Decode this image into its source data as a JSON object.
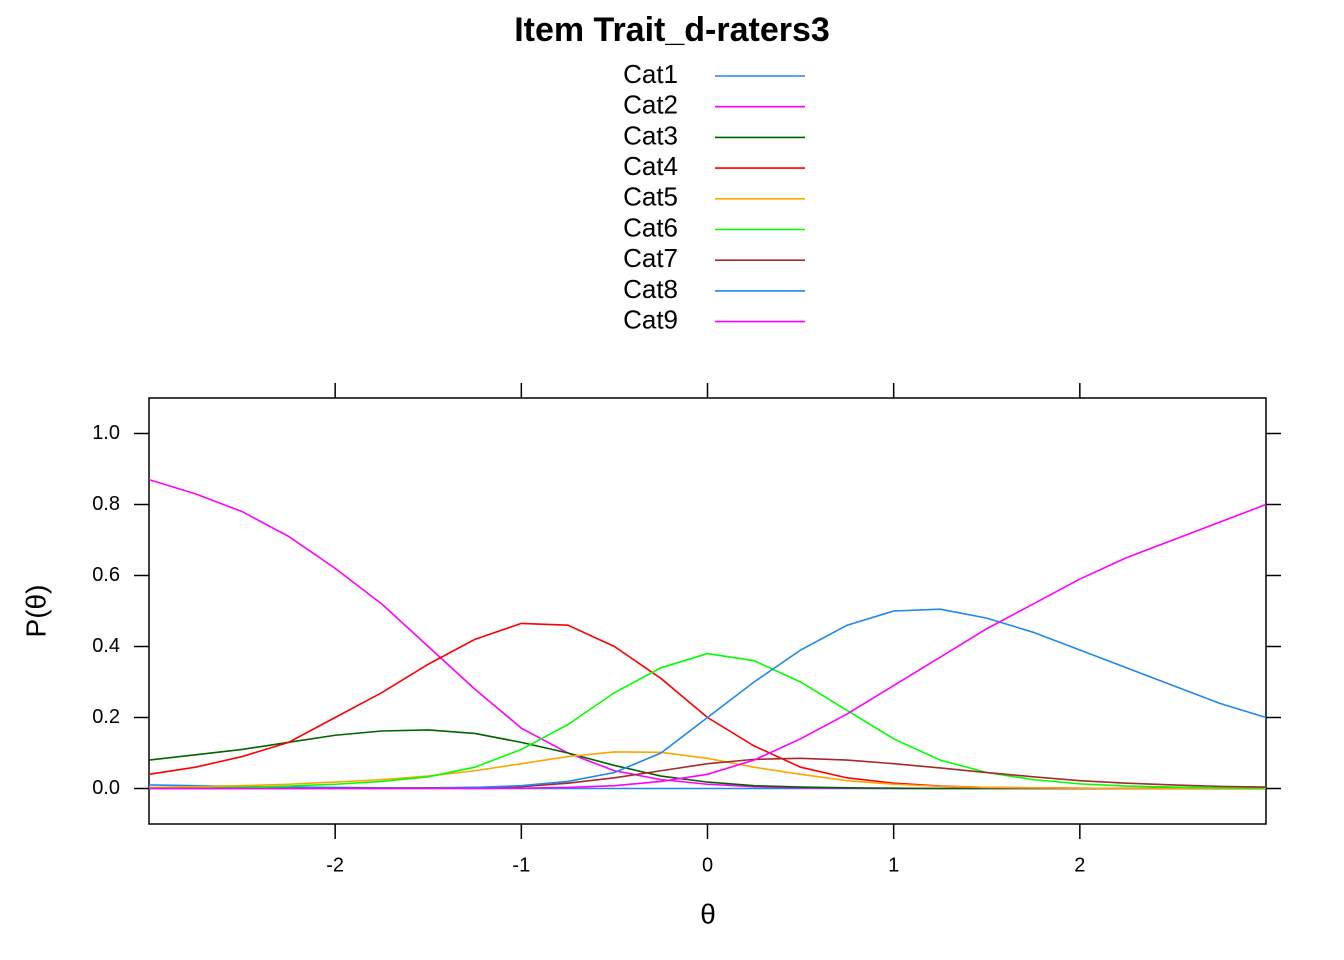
{
  "chart_data": {
    "type": "line",
    "title": "Item Trait_d-raters3",
    "x_label": "θ",
    "y_label": "P(θ)",
    "x": [
      -3,
      -2.75,
      -2.5,
      -2.25,
      -2,
      -1.75,
      -1.5,
      -1.25,
      -1,
      -0.75,
      -0.5,
      -0.25,
      0,
      0.25,
      0.5,
      0.75,
      1,
      1.25,
      1.5,
      1.75,
      2,
      2.25,
      2.5,
      2.75,
      3
    ],
    "xlim": [
      -3,
      3
    ],
    "xticks": [
      -2,
      -1,
      0,
      1,
      2
    ],
    "ylim": [
      -0.1,
      1.1
    ],
    "yticks": [
      {
        "value": 0,
        "label": "0.0"
      },
      {
        "value": 0.2,
        "label": "0.2"
      },
      {
        "value": 0.4,
        "label": "0.4"
      },
      {
        "value": 0.6,
        "label": "0.6"
      },
      {
        "value": 0.8,
        "label": "0.8"
      },
      {
        "value": 1,
        "label": "1.0"
      }
    ],
    "series": [
      {
        "name": "Cat1",
        "color": "#1e88f0",
        "values": [
          0.01,
          0.008,
          0.006,
          0.004,
          0.003,
          0.002,
          0.001,
          0,
          0,
          0,
          0,
          0,
          0,
          0,
          0,
          0,
          0,
          0,
          0,
          0,
          0,
          0,
          0,
          0,
          0
        ]
      },
      {
        "name": "Cat2",
        "color": "#ff00ff",
        "values": [
          0.87,
          0.83,
          0.78,
          0.71,
          0.62,
          0.52,
          0.4,
          0.28,
          0.17,
          0.1,
          0.05,
          0.025,
          0.012,
          0.005,
          0.002,
          0.001,
          0,
          0,
          0,
          0,
          0,
          0,
          0,
          0,
          0
        ]
      },
      {
        "name": "Cat3",
        "color": "#006400",
        "values": [
          0.08,
          0.095,
          0.11,
          0.13,
          0.15,
          0.162,
          0.165,
          0.155,
          0.13,
          0.1,
          0.065,
          0.035,
          0.018,
          0.008,
          0.004,
          0.002,
          0.001,
          0,
          0,
          0,
          0,
          0,
          0,
          0,
          0
        ]
      },
      {
        "name": "Cat4",
        "color": "#ff0000",
        "values": [
          0.04,
          0.06,
          0.09,
          0.13,
          0.2,
          0.27,
          0.35,
          0.42,
          0.465,
          0.46,
          0.4,
          0.31,
          0.2,
          0.12,
          0.06,
          0.03,
          0.015,
          0.007,
          0.003,
          0.002,
          0.001,
          0,
          0,
          0,
          0
        ]
      },
      {
        "name": "Cat5",
        "color": "#ffa500",
        "values": [
          0.003,
          0.005,
          0.008,
          0.012,
          0.018,
          0.025,
          0.035,
          0.05,
          0.07,
          0.09,
          0.103,
          0.102,
          0.085,
          0.06,
          0.04,
          0.022,
          0.012,
          0.006,
          0.003,
          0.002,
          0.001,
          0,
          0,
          0,
          0
        ]
      },
      {
        "name": "Cat6",
        "color": "#00ff00",
        "values": [
          0,
          0.001,
          0.003,
          0.007,
          0.012,
          0.02,
          0.033,
          0.06,
          0.11,
          0.18,
          0.27,
          0.34,
          0.38,
          0.36,
          0.3,
          0.22,
          0.14,
          0.08,
          0.045,
          0.025,
          0.013,
          0.007,
          0.004,
          0.002,
          0.001
        ]
      },
      {
        "name": "Cat7",
        "color": "#a52a2a",
        "values": [
          0,
          0,
          0,
          0,
          0.001,
          0.001,
          0.002,
          0.003,
          0.005,
          0.015,
          0.03,
          0.05,
          0.07,
          0.082,
          0.085,
          0.08,
          0.07,
          0.058,
          0.045,
          0.033,
          0.022,
          0.015,
          0.01,
          0.006,
          0.004
        ]
      },
      {
        "name": "Cat8",
        "color": "#1e88f0",
        "values": [
          0,
          0,
          0,
          0,
          0,
          0,
          0.001,
          0.003,
          0.008,
          0.02,
          0.045,
          0.1,
          0.2,
          0.3,
          0.39,
          0.46,
          0.5,
          0.505,
          0.48,
          0.44,
          0.39,
          0.34,
          0.29,
          0.24,
          0.2
        ]
      },
      {
        "name": "Cat9",
        "color": "#ff00ff",
        "values": [
          0,
          0,
          0,
          0,
          0,
          0,
          0,
          0,
          0.001,
          0.003,
          0.008,
          0.02,
          0.04,
          0.08,
          0.14,
          0.21,
          0.29,
          0.37,
          0.45,
          0.52,
          0.59,
          0.65,
          0.7,
          0.75,
          0.8
        ]
      }
    ]
  }
}
